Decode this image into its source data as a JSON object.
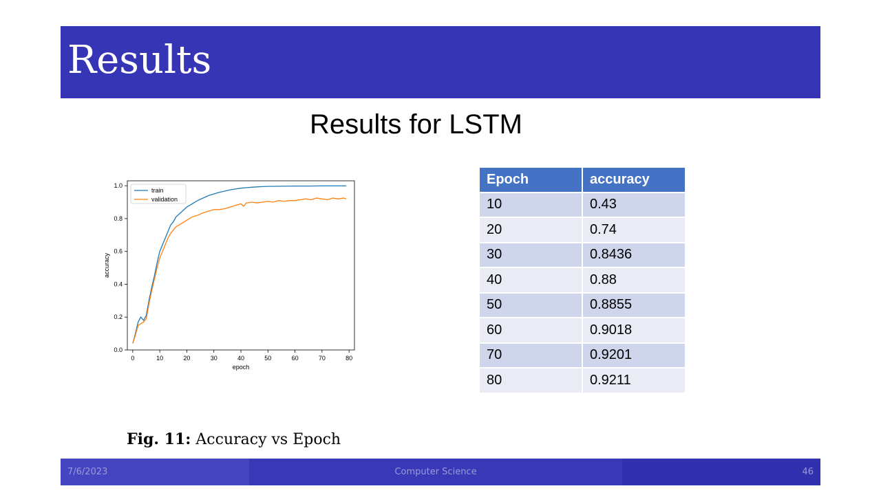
{
  "slide": {
    "title": "Results",
    "subtitle": "Results for LSTM",
    "caption_label": "Fig. 11:",
    "caption_text": " Accuracy vs Epoch"
  },
  "table": {
    "headers": [
      "Epoch",
      "accuracy"
    ],
    "rows": [
      [
        "10",
        "0.43"
      ],
      [
        "20",
        "0.74"
      ],
      [
        "30",
        "0.8436"
      ],
      [
        "40",
        "0.88"
      ],
      [
        "50",
        "0.8855"
      ],
      [
        "60",
        "0.9018"
      ],
      [
        "70",
        "0.9201"
      ],
      [
        "80",
        "0.9211"
      ]
    ]
  },
  "footer": {
    "date": "7/6/2023",
    "center": "Computer Science",
    "page": "46"
  },
  "chart_data": {
    "type": "line",
    "title": "",
    "xlabel": "epoch",
    "ylabel": "accuracy",
    "xlim": [
      -2,
      82
    ],
    "ylim": [
      0.0,
      1.03
    ],
    "xticks": [
      0,
      10,
      20,
      30,
      40,
      50,
      60,
      70,
      80
    ],
    "yticks": [
      0.0,
      0.2,
      0.4,
      0.6,
      0.8,
      1.0
    ],
    "ytick_labels": [
      "0.0",
      "0.2",
      "0.4",
      "0.6",
      "0.8",
      "1.0"
    ],
    "legend_position": "top-left",
    "grid": false,
    "series": [
      {
        "name": "train",
        "color": "#1f77b4",
        "x": [
          0,
          1,
          2,
          3,
          4,
          5,
          6,
          7,
          8,
          9,
          10,
          11,
          12,
          13,
          14,
          15,
          16,
          18,
          20,
          22,
          24,
          26,
          28,
          30,
          32,
          34,
          36,
          38,
          40,
          42,
          44,
          46,
          48,
          50,
          55,
          60,
          65,
          70,
          75,
          79
        ],
        "y": [
          0.04,
          0.1,
          0.17,
          0.2,
          0.18,
          0.21,
          0.3,
          0.38,
          0.45,
          0.53,
          0.6,
          0.64,
          0.68,
          0.72,
          0.76,
          0.78,
          0.81,
          0.84,
          0.87,
          0.89,
          0.91,
          0.925,
          0.94,
          0.95,
          0.96,
          0.967,
          0.975,
          0.98,
          0.985,
          0.988,
          0.991,
          0.993,
          0.995,
          0.996,
          0.997,
          0.998,
          0.998,
          0.999,
          0.999,
          0.999
        ]
      },
      {
        "name": "validation",
        "color": "#ff7f0e",
        "x": [
          0,
          1,
          2,
          3,
          4,
          5,
          6,
          7,
          8,
          9,
          10,
          11,
          12,
          13,
          14,
          15,
          16,
          18,
          20,
          22,
          24,
          26,
          28,
          30,
          32,
          34,
          36,
          38,
          40,
          41,
          42,
          44,
          46,
          48,
          50,
          52,
          54,
          56,
          58,
          60,
          62,
          64,
          66,
          68,
          70,
          72,
          74,
          76,
          78,
          79
        ],
        "y": [
          0.04,
          0.09,
          0.15,
          0.16,
          0.17,
          0.19,
          0.28,
          0.36,
          0.43,
          0.5,
          0.56,
          0.6,
          0.64,
          0.68,
          0.71,
          0.73,
          0.75,
          0.77,
          0.79,
          0.81,
          0.82,
          0.835,
          0.845,
          0.855,
          0.855,
          0.86,
          0.87,
          0.88,
          0.89,
          0.875,
          0.895,
          0.9,
          0.895,
          0.9,
          0.905,
          0.9,
          0.91,
          0.905,
          0.91,
          0.91,
          0.915,
          0.92,
          0.915,
          0.925,
          0.92,
          0.915,
          0.925,
          0.92,
          0.925,
          0.92
        ]
      }
    ]
  }
}
